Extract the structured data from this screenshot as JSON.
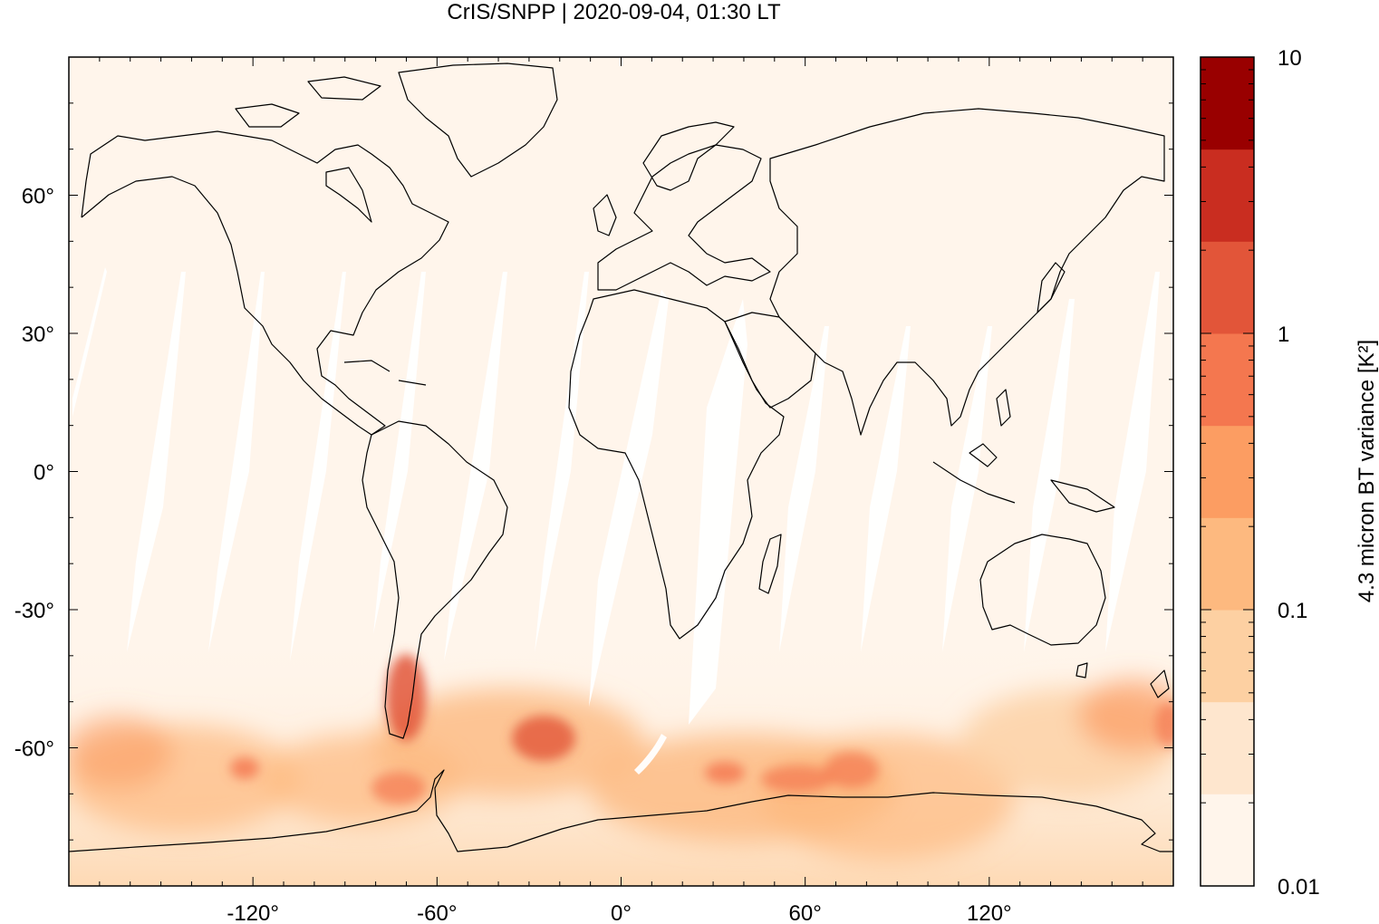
{
  "title": "CrIS/SNPP | 2020-09-04, 01:30 LT",
  "map": {
    "projection": "equirectangular",
    "lon_range": [
      -180,
      180
    ],
    "lat_range": [
      -90,
      90
    ],
    "x_ticks": [
      {
        "value": -120,
        "label": "-120°"
      },
      {
        "value": -60,
        "label": "-60°"
      },
      {
        "value": 0,
        "label": "0°"
      },
      {
        "value": 60,
        "label": "60°"
      },
      {
        "value": 120,
        "label": "120°"
      }
    ],
    "y_ticks": [
      {
        "value": 60,
        "label": "60°"
      },
      {
        "value": 30,
        "label": "30°"
      },
      {
        "value": 0,
        "label": "0°"
      },
      {
        "value": -30,
        "label": "-30°"
      },
      {
        "value": -60,
        "label": "-60°"
      }
    ],
    "coastlines": "black",
    "orbit_gaps": "white diagonal swaths between satellite passes"
  },
  "colorbar": {
    "label": "4.3 micron BT variance [K²]",
    "scale": "log",
    "range": [
      0.01,
      10
    ],
    "tick_labels": [
      {
        "value": 10,
        "label": "10"
      },
      {
        "value": 1,
        "label": "1"
      },
      {
        "value": 0.1,
        "label": "0.1"
      },
      {
        "value": 0.01,
        "label": "0.01"
      }
    ],
    "levels": 9,
    "colors": [
      "#fff5eb",
      "#fee6ce",
      "#fdd0a2",
      "#fdb97f",
      "#fc9d62",
      "#f4774f",
      "#e25539",
      "#c92d20",
      "#990000"
    ]
  },
  "hotspots": [
    {
      "region": "Patagonia / southern Andes",
      "lon": -69,
      "lat": -47,
      "level": "high"
    },
    {
      "region": "South Atlantic",
      "lon": -25,
      "lat": -55,
      "level": "high"
    },
    {
      "region": "Southern Ocean south of Africa",
      "lon": 35,
      "lat": -62,
      "level": "medium"
    },
    {
      "region": "Southern Indian Ocean",
      "lon": 65,
      "lat": -62,
      "level": "medium"
    },
    {
      "region": "South Pacific",
      "lon": -115,
      "lat": -62,
      "level": "medium"
    },
    {
      "region": "Antarctic Peninsula",
      "lon": -65,
      "lat": -66,
      "level": "medium"
    },
    {
      "region": "Tasman Sea",
      "lon": 165,
      "lat": -48,
      "level": "medium"
    }
  ]
}
